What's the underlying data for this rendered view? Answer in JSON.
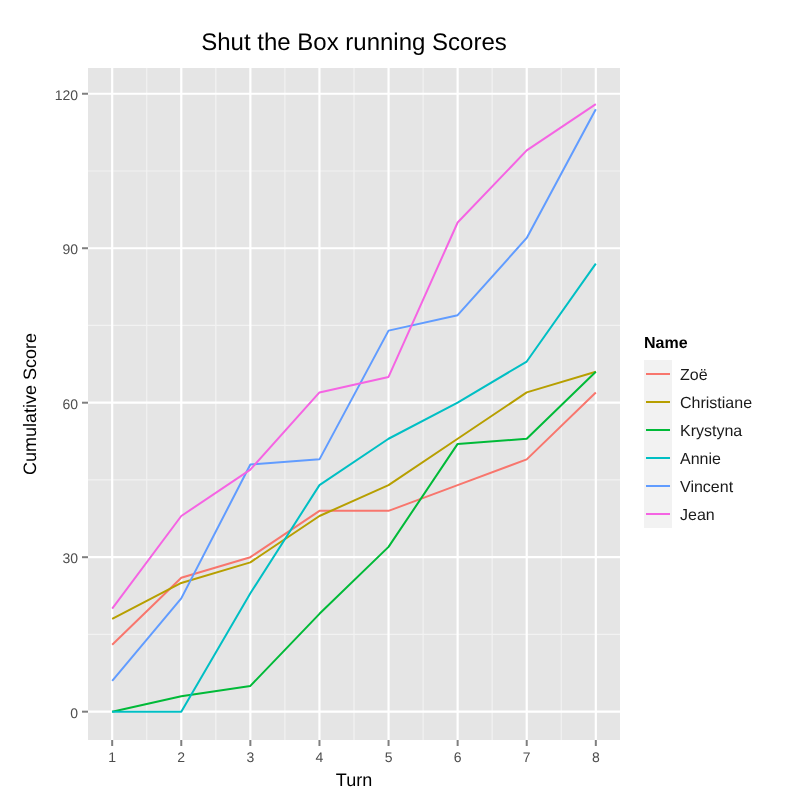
{
  "chart_data": {
    "type": "line",
    "title": "Shut the Box running Scores",
    "xlabel": "Turn",
    "ylabel": "Cumulative Score",
    "legend_title": "Name",
    "x": [
      1,
      2,
      3,
      4,
      5,
      6,
      7,
      8
    ],
    "xlim": [
      0.65,
      8.35
    ],
    "xticks": [
      1,
      2,
      3,
      4,
      5,
      6,
      7,
      8
    ],
    "ylim": [
      -5.5,
      125
    ],
    "yticks": [
      0,
      30,
      60,
      90,
      120
    ],
    "grid": true,
    "legend": "right",
    "series": [
      {
        "name": "Zoë",
        "color": "#f8766d",
        "values": [
          13,
          26,
          30,
          39,
          39,
          44,
          49,
          62
        ]
      },
      {
        "name": "Christiane",
        "color": "#b79f00",
        "values": [
          18,
          25,
          29,
          38,
          44,
          53,
          62,
          66
        ]
      },
      {
        "name": "Krystyna",
        "color": "#00ba38",
        "values": [
          0,
          3,
          5,
          19,
          32,
          52,
          53,
          66
        ]
      },
      {
        "name": "Annie",
        "color": "#00bfc4",
        "values": [
          0,
          0,
          23,
          44,
          53,
          60,
          68,
          87
        ]
      },
      {
        "name": "Vincent",
        "color": "#619cff",
        "values": [
          6,
          22,
          48,
          49,
          74,
          77,
          92,
          117
        ]
      },
      {
        "name": "Jean",
        "color": "#f564e3",
        "values": [
          20,
          38,
          47,
          62,
          65,
          95,
          109,
          118
        ]
      }
    ]
  }
}
